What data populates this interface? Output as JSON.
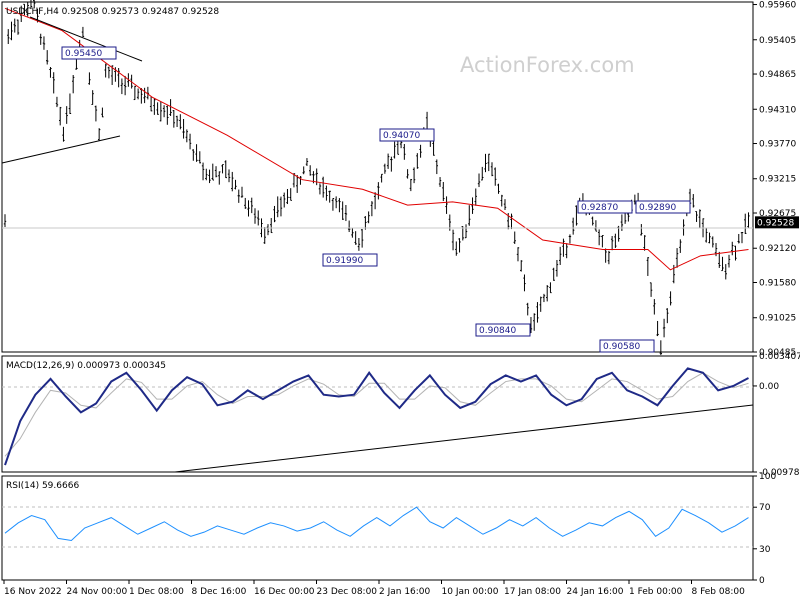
{
  "chart_data": [
    {
      "panel": "price",
      "type": "bar",
      "style": "ohlc-bars",
      "title": "USDCHF,H4  0.92508  0.92573  0.92487  0.92528",
      "watermark": "ActionForex.com",
      "ylim": [
        0.90485,
        0.96
      ],
      "yticks": [
        "0.95960",
        "0.95405",
        "0.94865",
        "0.94310",
        "0.93770",
        "0.93215",
        "0.92675",
        "0.92120",
        "0.91580",
        "0.91025",
        "0.90485"
      ],
      "current_price": "0.92528",
      "annotations": [
        "0.95450",
        "0.94070",
        "0.91990",
        "0.92870",
        "0.92890",
        "0.90840",
        "0.90580"
      ],
      "pivots": [
        {
          "label": "0.95450",
          "x": 0.025,
          "y": 0.9545
        },
        {
          "label": "0.95450",
          "x": 0.205,
          "y": 0.9602
        },
        {
          "label": "0.95450",
          "x": 0.415,
          "y": 0.9395
        },
        {
          "label": "0.95450",
          "x": 0.535,
          "y": 0.956
        },
        {
          "label": "0.95450",
          "x": 0.65,
          "y": 0.9385
        },
        {
          "label": "0.94070",
          "x": 0.69,
          "y": 0.949
        },
        {
          "label": "0.94070",
          "x": 1.15,
          "y": 0.942
        },
        {
          "label": "0.94070",
          "x": 1.36,
          "y": 0.933
        },
        {
          "label": "0.94070",
          "x": 1.5,
          "y": 0.933
        },
        {
          "label": "0.91990",
          "x": 1.75,
          "y": 0.924
        },
        {
          "label": "0.91990",
          "x": 2.03,
          "y": 0.934
        },
        {
          "label": "0.91990",
          "x": 2.2,
          "y": 0.929
        },
        {
          "label": "0.91990",
          "x": 2.38,
          "y": 0.9225
        },
        {
          "label": "0.94070",
          "x": 2.65,
          "y": 0.939
        },
        {
          "label": "0.94070",
          "x": 2.72,
          "y": 0.931
        },
        {
          "label": "0.94070",
          "x": 2.83,
          "y": 0.9407
        },
        {
          "label": "0.91990",
          "x": 3.03,
          "y": 0.9205
        },
        {
          "label": "0.92870",
          "x": 3.23,
          "y": 0.9355
        },
        {
          "label": "0.92870",
          "x": 3.41,
          "y": 0.9235
        },
        {
          "label": "0.90840",
          "x": 3.53,
          "y": 0.9084
        },
        {
          "label": "0.92870",
          "x": 3.87,
          "y": 0.9287
        },
        {
          "label": "0.92870",
          "x": 4.03,
          "y": 0.92
        },
        {
          "label": "0.92890",
          "x": 4.23,
          "y": 0.9289
        },
        {
          "label": "0.90580",
          "x": 4.38,
          "y": 0.9058
        },
        {
          "label": "0.92890",
          "x": 4.58,
          "y": 0.9289
        },
        {
          "label": "0.92890",
          "x": 4.8,
          "y": 0.918
        },
        {
          "label": "0.92528",
          "x": 4.97,
          "y": 0.9253
        }
      ],
      "ma_series": {
        "name": "",
        "points": [
          [
            0.02,
            0.959
          ],
          [
            0.4,
            0.9555
          ],
          [
            1.0,
            0.945
          ],
          [
            1.5,
            0.939
          ],
          [
            2.0,
            0.932
          ],
          [
            2.4,
            0.9305
          ],
          [
            2.7,
            0.928
          ],
          [
            3.0,
            0.9285
          ],
          [
            3.3,
            0.9275
          ],
          [
            3.6,
            0.9225
          ],
          [
            4.0,
            0.921
          ],
          [
            4.3,
            0.921
          ],
          [
            4.45,
            0.9178
          ],
          [
            4.65,
            0.92
          ],
          [
            4.97,
            0.921
          ]
        ]
      },
      "xtick_labels": [
        "16 Nov 2022",
        "24 Nov 00:00",
        "1 Dec 08:00",
        "8 Dec 16:00",
        "16 Dec 00:00",
        "23 Dec 08:00",
        "2 Jan 16:00",
        "10 Jan 00:00",
        "17 Jan 08:00",
        "24 Jan 16:00",
        "1 Feb 00:00",
        "8 Feb 08:00"
      ]
    },
    {
      "panel": "macd",
      "type": "line",
      "title": "MACD(12,26,9) 0.000973 0.000345",
      "ylim": [
        -0.009789,
        0.003407
      ],
      "yticks": [
        "0.003407",
        "0.00",
        "-0.009789"
      ],
      "series": [
        {
          "values": [
            -0.009,
            -0.004,
            -0.001,
            0.0008,
            -0.0012,
            -0.003,
            -0.002,
            0.0005,
            0.0015,
            -0.0005,
            -0.0028,
            -0.0005,
            0.001,
            0.0002,
            -0.0022,
            -0.0018,
            -0.0005,
            -0.0015,
            -0.0005,
            0.0005,
            0.0012,
            -0.001,
            -0.0012,
            -0.001,
            0.0015,
            -0.0008,
            -0.0025,
            -0.0005,
            0.0012,
            -0.001,
            -0.0025,
            -0.0018,
            0.0002,
            0.0012,
            0.0005,
            0.0012,
            -0.001,
            -0.0022,
            -0.0015,
            0.0008,
            0.0015,
            -0.0005,
            -0.0012,
            -0.0022,
            0.0,
            0.002,
            0.0015,
            -0.0005,
            0.0,
            0.0009
          ]
        }
      ],
      "signal": {
        "values": [
          -0.008,
          -0.006,
          -0.003,
          -0.0005,
          -0.0008,
          -0.0022,
          -0.0025,
          -0.0008,
          0.0008,
          0.0004,
          -0.0015,
          -0.0015,
          0.0,
          0.0005,
          -0.001,
          -0.002,
          -0.0012,
          -0.0012,
          -0.001,
          0.0,
          0.0008,
          0.0002,
          -0.001,
          -0.0012,
          0.0003,
          0.0003,
          -0.0015,
          -0.0015,
          0.0,
          -0.0002,
          -0.0018,
          -0.0022,
          -0.0008,
          0.0005,
          0.0008,
          0.0008,
          0.0,
          -0.0015,
          -0.0018,
          -0.0005,
          0.0008,
          0.0005,
          -0.0005,
          -0.0015,
          -0.0012,
          0.0005,
          0.0015,
          0.0005,
          -0.0002,
          0.0003
        ]
      },
      "trendline": {
        "x": [
          1.7,
          7.52
        ],
        "y": [
          -0.0095,
          -0.002
        ]
      }
    },
    {
      "panel": "rsi",
      "type": "line",
      "title": "RSI(14) 59.6666",
      "ylim": [
        0,
        100
      ],
      "yticks": [
        "100",
        "70",
        "30",
        "0"
      ],
      "levels": [
        70,
        30
      ],
      "series": [
        {
          "values": [
            45,
            55,
            62,
            58,
            40,
            38,
            50,
            55,
            60,
            52,
            44,
            50,
            56,
            48,
            42,
            46,
            52,
            48,
            44,
            50,
            55,
            52,
            47,
            50,
            56,
            48,
            42,
            52,
            60,
            52,
            62,
            70,
            56,
            50,
            60,
            52,
            44,
            50,
            58,
            52,
            60,
            50,
            42,
            48,
            55,
            52,
            60,
            66,
            58,
            42,
            50,
            68,
            62,
            55,
            46,
            52,
            60
          ]
        }
      ]
    }
  ]
}
